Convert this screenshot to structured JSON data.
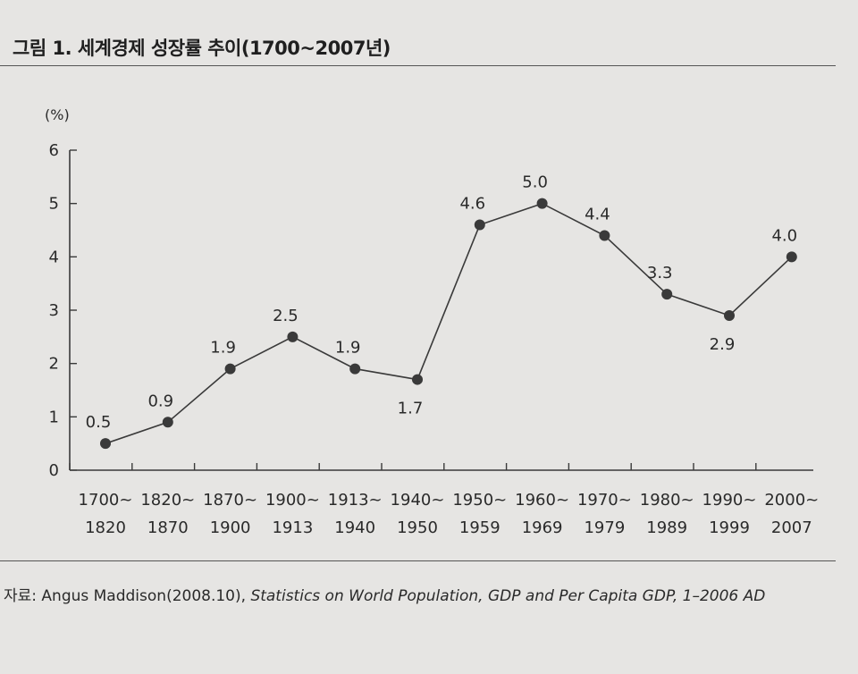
{
  "figure": {
    "title": "그림 1. 세계경제 성장률 추이(1700~2007년)",
    "source_prefix": "자료: Angus Maddison(2008.10), ",
    "source_italic": "Statistics on World Population, GDP and Per Capita GDP, 1–2006 AD"
  },
  "chart_data": {
    "type": "line",
    "title": "세계경제 성장률 추이(1700~2007년)",
    "ylabel": "(%)",
    "xlabel": "",
    "ylim": [
      0,
      6
    ],
    "yticks": [
      "0",
      "1",
      "2",
      "3",
      "4",
      "5",
      "6"
    ],
    "categories": [
      [
        "1700~",
        "1820"
      ],
      [
        "1820~",
        "1870"
      ],
      [
        "1870~",
        "1900"
      ],
      [
        "1900~",
        "1913"
      ],
      [
        "1913~",
        "1940"
      ],
      [
        "1940~",
        "1950"
      ],
      [
        "1950~",
        "1959"
      ],
      [
        "1960~",
        "1969"
      ],
      [
        "1970~",
        "1979"
      ],
      [
        "1980~",
        "1989"
      ],
      [
        "1990~",
        "1999"
      ],
      [
        "2000~",
        "2007"
      ]
    ],
    "values": [
      0.5,
      0.9,
      1.9,
      2.5,
      1.9,
      1.7,
      4.6,
      5.0,
      4.4,
      3.3,
      2.9,
      4.0
    ],
    "labels": [
      "0.5",
      "0.9",
      "1.9",
      "2.5",
      "1.9",
      "1.7",
      "4.6",
      "5.0",
      "4.4",
      "3.3",
      "2.9",
      "4.0"
    ],
    "label_position": [
      "above",
      "above",
      "above",
      "above",
      "above",
      "below",
      "above",
      "above",
      "above",
      "above",
      "below",
      "above"
    ],
    "colors": {
      "line": "#3a3a3a",
      "marker": "#3a3a3a",
      "axis": "#3a3a3a"
    },
    "grid": false,
    "legend": "none"
  }
}
